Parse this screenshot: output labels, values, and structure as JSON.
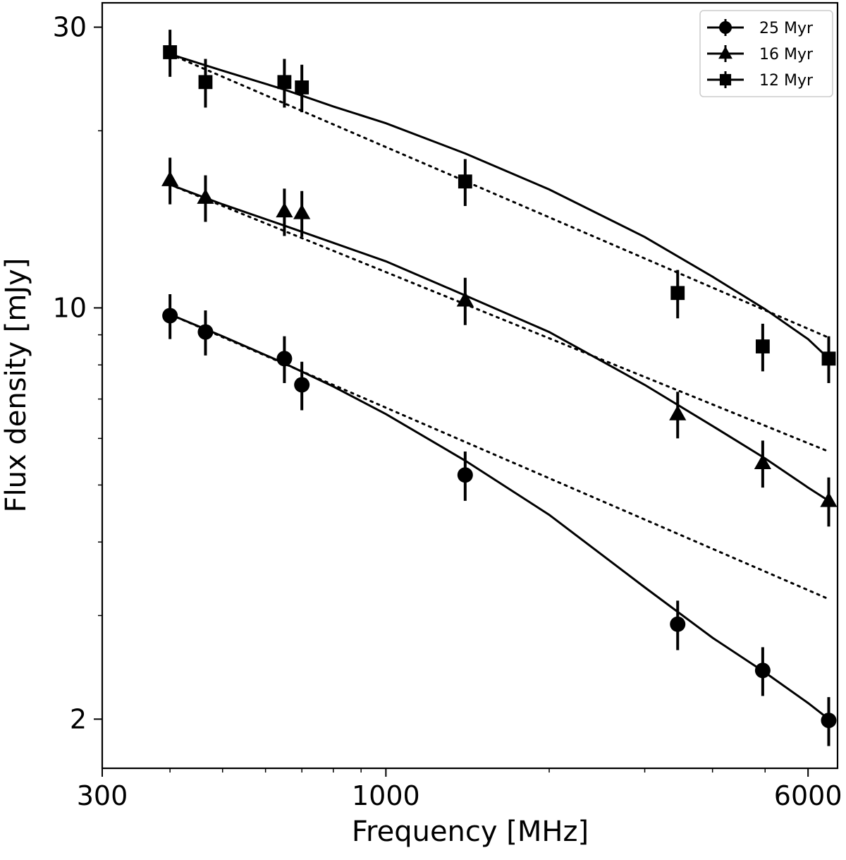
{
  "chart_data": {
    "type": "scatter",
    "title": "",
    "xlabel": "Frequency [MHz]",
    "ylabel": "Flux density [mJy]",
    "xscale": "log",
    "yscale": "log",
    "xlim": [
      300,
      6800
    ],
    "ylim": [
      1.65,
      33
    ],
    "x_ticks": [
      {
        "value": 300,
        "label": "300"
      },
      {
        "value": 1000,
        "label": "1000"
      },
      {
        "value": 6000,
        "label": "6000"
      }
    ],
    "y_ticks": [
      {
        "value": 2,
        "label": "2"
      },
      {
        "value": 10,
        "label": "10"
      },
      {
        "value": 30,
        "label": "30"
      }
    ],
    "x_minor_ticks": [
      400,
      500,
      600,
      700,
      800,
      900,
      2000,
      3000,
      4000,
      5000
    ],
    "y_minor_ticks": [
      3,
      4,
      5,
      6,
      7,
      8,
      9,
      20
    ],
    "legend_position": "top-right",
    "series": [
      {
        "name": "25 Myr",
        "marker": "circle",
        "color": "#000000",
        "points": [
          {
            "x": 400,
            "y": 9.7,
            "err": 0.85
          },
          {
            "x": 465,
            "y": 9.1,
            "err": 0.8
          },
          {
            "x": 650,
            "y": 8.2,
            "err": 0.75
          },
          {
            "x": 700,
            "y": 7.4,
            "err": 0.7
          },
          {
            "x": 1400,
            "y": 5.2,
            "err": 0.5
          },
          {
            "x": 3450,
            "y": 2.9,
            "err": 0.28
          },
          {
            "x": 4950,
            "y": 2.42,
            "err": 0.23
          },
          {
            "x": 6550,
            "y": 1.99,
            "err": 0.19
          }
        ],
        "fit": [
          {
            "x": 400,
            "y": 9.75
          },
          {
            "x": 500,
            "y": 8.95
          },
          {
            "x": 650,
            "y": 8.05
          },
          {
            "x": 800,
            "y": 7.35
          },
          {
            "x": 1000,
            "y": 6.6
          },
          {
            "x": 1400,
            "y": 5.5
          },
          {
            "x": 2000,
            "y": 4.45
          },
          {
            "x": 3000,
            "y": 3.35
          },
          {
            "x": 4000,
            "y": 2.75
          },
          {
            "x": 5000,
            "y": 2.4
          },
          {
            "x": 6000,
            "y": 2.13
          },
          {
            "x": 6550,
            "y": 2.0
          }
        ],
        "powerlaw": [
          {
            "x": 400,
            "y": 9.75
          },
          {
            "x": 6550,
            "y": 3.2
          }
        ]
      },
      {
        "name": "16 Myr",
        "marker": "triangle",
        "color": "#000000",
        "points": [
          {
            "x": 400,
            "y": 16.5,
            "err": 1.5
          },
          {
            "x": 465,
            "y": 15.4,
            "err": 1.4
          },
          {
            "x": 650,
            "y": 14.6,
            "err": 1.35
          },
          {
            "x": 700,
            "y": 14.5,
            "err": 1.3
          },
          {
            "x": 1400,
            "y": 10.3,
            "err": 0.95
          },
          {
            "x": 3450,
            "y": 6.6,
            "err": 0.6
          },
          {
            "x": 4950,
            "y": 5.45,
            "err": 0.5
          },
          {
            "x": 6550,
            "y": 4.7,
            "err": 0.45
          }
        ],
        "fit": [
          {
            "x": 400,
            "y": 16.2
          },
          {
            "x": 500,
            "y": 15.0
          },
          {
            "x": 650,
            "y": 13.8
          },
          {
            "x": 800,
            "y": 12.9
          },
          {
            "x": 1000,
            "y": 12.0
          },
          {
            "x": 1400,
            "y": 10.5
          },
          {
            "x": 2000,
            "y": 9.1
          },
          {
            "x": 3000,
            "y": 7.4
          },
          {
            "x": 4000,
            "y": 6.3
          },
          {
            "x": 5000,
            "y": 5.55
          },
          {
            "x": 6000,
            "y": 4.95
          },
          {
            "x": 6550,
            "y": 4.7
          }
        ],
        "powerlaw": [
          {
            "x": 400,
            "y": 16.2
          },
          {
            "x": 6550,
            "y": 5.7
          }
        ]
      },
      {
        "name": "12 Myr",
        "marker": "square",
        "color": "#000000",
        "points": [
          {
            "x": 400,
            "y": 27.2,
            "err": 2.5
          },
          {
            "x": 465,
            "y": 24.2,
            "err": 2.3
          },
          {
            "x": 650,
            "y": 24.2,
            "err": 2.3
          },
          {
            "x": 700,
            "y": 23.7,
            "err": 2.2
          },
          {
            "x": 1400,
            "y": 16.4,
            "err": 1.5
          },
          {
            "x": 3450,
            "y": 10.6,
            "err": 1.0
          },
          {
            "x": 4950,
            "y": 8.6,
            "err": 0.8
          },
          {
            "x": 6550,
            "y": 8.2,
            "err": 0.75
          }
        ],
        "fit": [
          {
            "x": 400,
            "y": 27.0
          },
          {
            "x": 500,
            "y": 25.3
          },
          {
            "x": 650,
            "y": 23.5
          },
          {
            "x": 800,
            "y": 22.0
          },
          {
            "x": 1000,
            "y": 20.6
          },
          {
            "x": 1400,
            "y": 18.3
          },
          {
            "x": 2000,
            "y": 15.9
          },
          {
            "x": 3000,
            "y": 13.2
          },
          {
            "x": 4000,
            "y": 11.3
          },
          {
            "x": 5000,
            "y": 9.95
          },
          {
            "x": 6000,
            "y": 8.85
          },
          {
            "x": 6550,
            "y": 8.2
          }
        ],
        "powerlaw": [
          {
            "x": 400,
            "y": 27.0
          },
          {
            "x": 6550,
            "y": 8.9
          }
        ]
      }
    ]
  }
}
